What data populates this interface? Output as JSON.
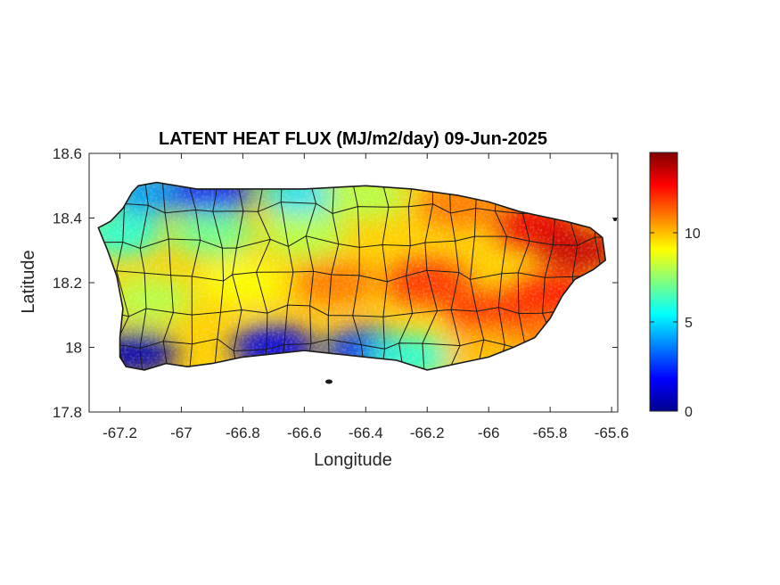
{
  "title": "LATENT HEAT FLUX (MJ/m2/day) 09-Jun-2025",
  "xlabel": "Longitude",
  "ylabel": "Latitude",
  "x_ticks": [
    {
      "value": -67.2,
      "label": "-67.2"
    },
    {
      "value": -67.0,
      "label": "-67"
    },
    {
      "value": -66.8,
      "label": "-66.8"
    },
    {
      "value": -66.6,
      "label": "-66.6"
    },
    {
      "value": -66.4,
      "label": "-66.4"
    },
    {
      "value": -66.2,
      "label": "-66.2"
    },
    {
      "value": -66.0,
      "label": "-66"
    },
    {
      "value": -65.8,
      "label": "-65.8"
    },
    {
      "value": -65.6,
      "label": "-65.6"
    }
  ],
  "y_ticks": [
    {
      "value": 18.6,
      "label": "18.6"
    },
    {
      "value": 18.4,
      "label": "18.4"
    },
    {
      "value": 18.2,
      "label": "18.2"
    },
    {
      "value": 18.0,
      "label": "18"
    },
    {
      "value": 17.8,
      "label": "17.8"
    }
  ],
  "xlim": [
    -67.3,
    -65.58
  ],
  "ylim": [
    17.8,
    18.6
  ],
  "colorbar": {
    "colormap": "jet",
    "range": [
      0,
      14.5
    ],
    "ticks": [
      {
        "value": 0,
        "label": "0"
      },
      {
        "value": 5,
        "label": "5"
      },
      {
        "value": 10,
        "label": "10"
      }
    ]
  },
  "colors": {
    "axis": "#262626",
    "boundary": "#1a1a1a",
    "background": "#ffffff"
  },
  "chart_data": {
    "type": "heatmap",
    "title": "LATENT HEAT FLUX (MJ/m2/day) 09-Jun-2025",
    "xlabel": "Longitude",
    "ylabel": "Latitude",
    "xlim": [
      -67.3,
      -65.58
    ],
    "ylim": [
      17.8,
      18.6
    ],
    "value_range": [
      0,
      14.5
    ],
    "colormap": "jet",
    "grid": false,
    "outline": [
      [
        -67.27,
        18.37
      ],
      [
        -67.23,
        18.39
      ],
      [
        -67.19,
        18.43
      ],
      [
        -67.16,
        18.48
      ],
      [
        -67.14,
        18.5
      ],
      [
        -67.08,
        18.51
      ],
      [
        -66.95,
        18.49
      ],
      [
        -66.8,
        18.49
      ],
      [
        -66.6,
        18.49
      ],
      [
        -66.4,
        18.5
      ],
      [
        -66.25,
        18.49
      ],
      [
        -66.1,
        18.47
      ],
      [
        -66.0,
        18.45
      ],
      [
        -65.9,
        18.42
      ],
      [
        -65.8,
        18.4
      ],
      [
        -65.75,
        18.39
      ],
      [
        -65.67,
        18.37
      ],
      [
        -65.63,
        18.34
      ],
      [
        -65.62,
        18.27
      ],
      [
        -65.66,
        18.24
      ],
      [
        -65.72,
        18.21
      ],
      [
        -65.76,
        18.16
      ],
      [
        -65.8,
        18.09
      ],
      [
        -65.85,
        18.03
      ],
      [
        -65.92,
        18.0
      ],
      [
        -66.0,
        17.97
      ],
      [
        -66.1,
        17.95
      ],
      [
        -66.2,
        17.93
      ],
      [
        -66.3,
        17.96
      ],
      [
        -66.4,
        17.97
      ],
      [
        -66.5,
        17.98
      ],
      [
        -66.6,
        17.99
      ],
      [
        -66.7,
        17.98
      ],
      [
        -66.8,
        17.97
      ],
      [
        -66.9,
        17.95
      ],
      [
        -66.98,
        17.94
      ],
      [
        -67.05,
        17.95
      ],
      [
        -67.12,
        17.93
      ],
      [
        -67.18,
        17.94
      ],
      [
        -67.2,
        17.97
      ],
      [
        -67.2,
        18.03
      ],
      [
        -67.19,
        18.12
      ],
      [
        -67.21,
        18.22
      ],
      [
        -67.24,
        18.3
      ],
      [
        -67.27,
        18.37
      ]
    ],
    "regions": [
      {
        "lon": -67.2,
        "lat": 18.35,
        "value": 6.0
      },
      {
        "lon": -67.1,
        "lat": 18.48,
        "value": 4.0
      },
      {
        "lon": -66.9,
        "lat": 18.48,
        "value": 2.0
      },
      {
        "lon": -66.6,
        "lat": 18.47,
        "value": 5.0
      },
      {
        "lon": -66.4,
        "lat": 18.47,
        "value": 8.0
      },
      {
        "lon": -66.1,
        "lat": 18.44,
        "value": 11.0
      },
      {
        "lon": -65.85,
        "lat": 18.38,
        "value": 13.0
      },
      {
        "lon": -65.7,
        "lat": 18.3,
        "value": 13.5
      },
      {
        "lon": -65.8,
        "lat": 18.15,
        "value": 12.5
      },
      {
        "lon": -65.85,
        "lat": 18.03,
        "value": 11.0
      },
      {
        "lon": -66.0,
        "lat": 18.1,
        "value": 12.0
      },
      {
        "lon": -66.2,
        "lat": 18.2,
        "value": 12.0
      },
      {
        "lon": -66.5,
        "lat": 18.2,
        "value": 11.0
      },
      {
        "lon": -66.8,
        "lat": 18.2,
        "value": 9.0
      },
      {
        "lon": -67.1,
        "lat": 18.15,
        "value": 8.0
      },
      {
        "lon": -66.9,
        "lat": 18.35,
        "value": 7.0
      },
      {
        "lon": -66.6,
        "lat": 18.35,
        "value": 8.0
      },
      {
        "lon": -67.15,
        "lat": 17.98,
        "value": 0.8
      },
      {
        "lon": -66.7,
        "lat": 18.0,
        "value": 1.5
      },
      {
        "lon": -66.4,
        "lat": 17.99,
        "value": 2.5
      },
      {
        "lon": -66.25,
        "lat": 17.97,
        "value": 6.0
      },
      {
        "lon": -66.0,
        "lat": 17.98,
        "value": 10.0
      }
    ]
  }
}
